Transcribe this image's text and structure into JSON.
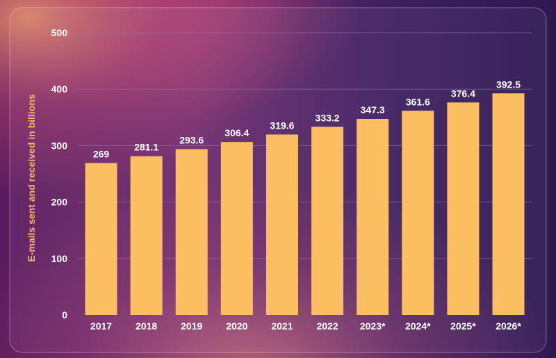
{
  "chart_data": {
    "type": "bar",
    "categories": [
      "2017",
      "2018",
      "2019",
      "2020",
      "2021",
      "2022",
      "2023*",
      "2024*",
      "2025*",
      "2026*"
    ],
    "values": [
      269,
      281.1,
      293.6,
      306.4,
      319.6,
      333.2,
      347.3,
      361.6,
      376.4,
      392.5
    ],
    "data_labels": [
      "269",
      "281.1",
      "293.6",
      "306.4",
      "319.6",
      "333.2",
      "347.3",
      "361.6",
      "376.4",
      "392.5"
    ],
    "title": "",
    "xlabel": "",
    "ylabel": "E-mails sent and received in billions",
    "ylim": [
      0,
      500
    ],
    "yticks": [
      "0",
      "100",
      "200",
      "300",
      "400",
      "500"
    ],
    "grid": true,
    "legend": "none",
    "colors": {
      "bar": "#fbbf62",
      "grid": "#9a78b8",
      "text": "#ffffff",
      "ylabel": "#f7b55a"
    }
  }
}
